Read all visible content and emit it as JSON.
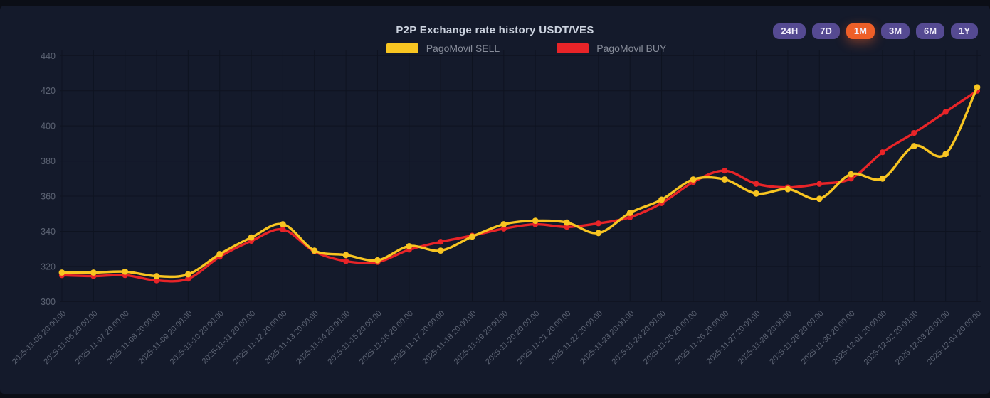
{
  "header": {
    "title": "P2P Exchange rate history USDT/VES",
    "range_buttons": [
      {
        "label": "24H",
        "active": false
      },
      {
        "label": "7D",
        "active": false
      },
      {
        "label": "1M",
        "active": true
      },
      {
        "label": "3M",
        "active": false
      },
      {
        "label": "6M",
        "active": false
      },
      {
        "label": "1Y",
        "active": false
      }
    ]
  },
  "legend": [
    {
      "label": "PagoMovil SELL",
      "color": "#f8c521"
    },
    {
      "label": "PagoMovil BUY",
      "color": "#e82428"
    }
  ],
  "colors": {
    "card_background": "#141a2b",
    "page_background": "#0b0e16",
    "grid_line": "#0e1320",
    "axis_text": "#5d6474",
    "title_text": "#ccd3df",
    "legend_text": "#878c99",
    "button_background": "#554a92",
    "button_active_background": "#ee5f28",
    "sell_line": "#f8c521",
    "buy_line": "#e82428"
  },
  "chart_data": {
    "type": "line",
    "title": "P2P Exchange rate history USDT/VES",
    "xlabel": "",
    "ylabel": "",
    "ylim": [
      300,
      440
    ],
    "y_ticks": [
      300,
      320,
      340,
      360,
      380,
      400,
      420,
      440
    ],
    "grid": true,
    "legend_position": "top",
    "x": [
      "2025-11-05 20:00:00",
      "2025-11-06 20:00:00",
      "2025-11-07 20:00:00",
      "2025-11-08 20:00:00",
      "2025-11-09 20:00:00",
      "2025-11-10 20:00:00",
      "2025-11-11 20:00:00",
      "2025-11-12 20:00:00",
      "2025-11-13 20:00:00",
      "2025-11-14 20:00:00",
      "2025-11-15 20:00:00",
      "2025-11-16 20:00:00",
      "2025-11-17 20:00:00",
      "2025-11-18 20:00:00",
      "2025-11-19 20:00:00",
      "2025-11-20 20:00:00",
      "2025-11-21 20:00:00",
      "2025-11-22 20:00:00",
      "2025-11-23 20:00:00",
      "2025-11-24 20:00:00",
      "2025-11-25 20:00:00",
      "2025-11-26 20:00:00",
      "2025-11-27 20:00:00",
      "2025-11-28 20:00:00",
      "2025-11-29 20:00:00",
      "2025-11-30 20:00:00",
      "2025-12-01 20:00:00",
      "2025-12-02 20:00:00",
      "2025-12-03 20:00:00",
      "2025-12-04 20:00:00"
    ],
    "series": [
      {
        "name": "PagoMovil SELL",
        "color": "#f8c521",
        "values": [
          316.5,
          316.5,
          317,
          314.5,
          315.5,
          327,
          336.5,
          344,
          329,
          326.5,
          323.5,
          331.5,
          329,
          337,
          344,
          346,
          345,
          339,
          350.5,
          358,
          369.5,
          369.5,
          361.5,
          364,
          358.5,
          372.5,
          370,
          388.5,
          384,
          422
        ]
      },
      {
        "name": "PagoMovil BUY",
        "color": "#e82428",
        "values": [
          315,
          314.5,
          315,
          312,
          313,
          325.5,
          334.5,
          341,
          328.5,
          323,
          322.5,
          329.5,
          334,
          337.5,
          341.5,
          344,
          342.5,
          344.5,
          348,
          356,
          368,
          374.5,
          367,
          365,
          367,
          370,
          385,
          396,
          408,
          420
        ]
      }
    ]
  }
}
